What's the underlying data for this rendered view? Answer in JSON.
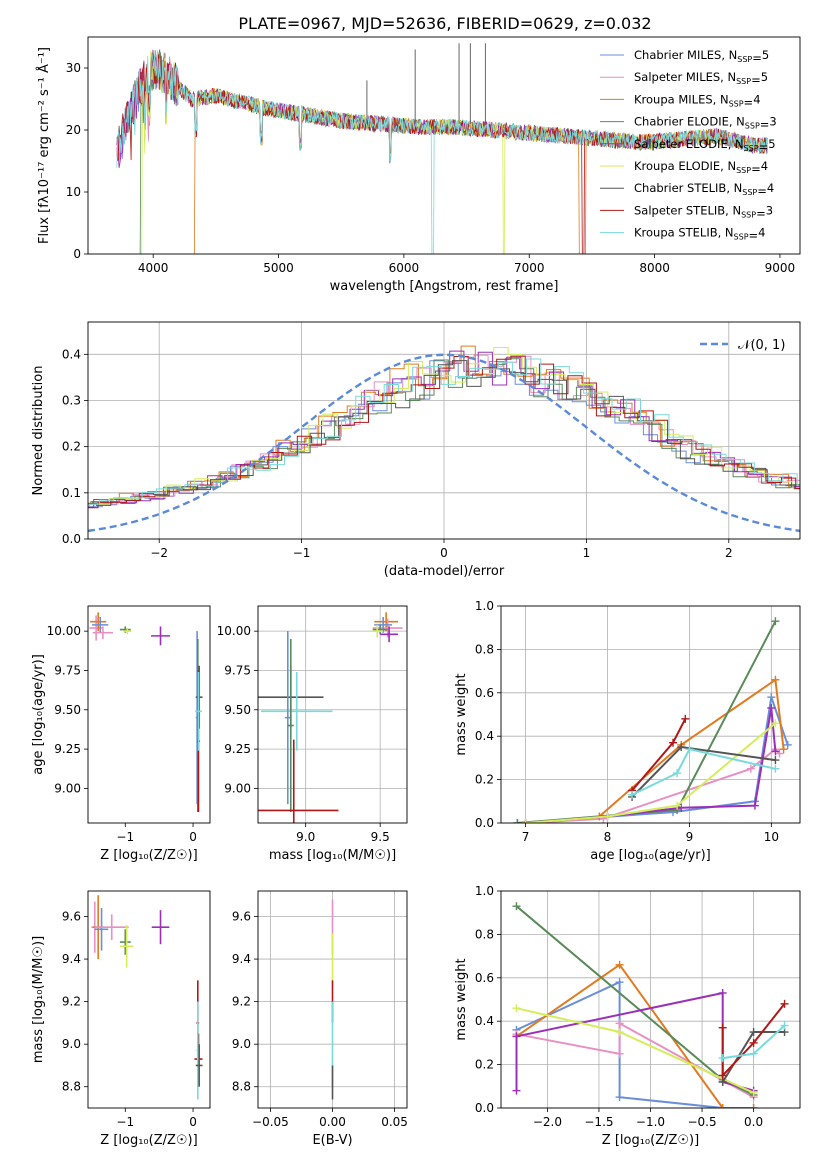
{
  "figure_title": "PLATE=0967, MJD=52636, FIBERID=0629, z=0.032",
  "colors": {
    "c0": "#6a8fd8",
    "c1": "#e88fc4",
    "c2": "#e07b20",
    "c3": "#5a8a5a",
    "c4": "#9b30b8",
    "c5": "#d4ee5a",
    "c6": "#555555",
    "c7": "#b01818",
    "c8": "#7adada",
    "ref": "#5a8ad8"
  },
  "chart_data": [
    {
      "id": "spectrum",
      "type": "line",
      "title": "PLATE=0967, MJD=52636, FIBERID=0629, z=0.032",
      "xlabel": "wavelength [Angstrom, rest frame]",
      "ylabel": "Flux [fλ10⁻¹⁷ erg cm⁻² s⁻¹ Å⁻¹]",
      "xlim": [
        3480,
        9160
      ],
      "ylim": [
        0,
        35
      ],
      "xticks": [
        4000,
        5000,
        6000,
        7000,
        8000,
        9000
      ],
      "yticks": [
        0,
        10,
        20,
        30
      ],
      "grid": false,
      "legend_position": "top-right",
      "continuum": {
        "x": [
          3710,
          3800,
          3900,
          4000,
          4100,
          4300,
          4500,
          4700,
          4900,
          5200,
          5500,
          5800,
          6100,
          6400,
          6700,
          7000,
          7300,
          7600,
          7900,
          8200,
          8500,
          8800
        ],
        "y": [
          16,
          22,
          27,
          30,
          29,
          25,
          25.5,
          24.5,
          23.5,
          22.5,
          21.5,
          21,
          20.5,
          20.5,
          20,
          19.5,
          19,
          18.5,
          18,
          18.5,
          19,
          17.5
        ]
      },
      "series": [
        {
          "name": "Chabrier MILES",
          "nssp": "5",
          "color_key": "c0"
        },
        {
          "name": "Salpeter MILES",
          "nssp": "5",
          "color_key": "c1"
        },
        {
          "name": "Kroupa MILES",
          "nssp": "4",
          "color_key": "c2",
          "cutoff": [
            [
              3710,
              4330
            ],
            [
              7400,
              7450
            ]
          ]
        },
        {
          "name": "Chabrier ELODIE",
          "nssp": "3",
          "color_key": "c3",
          "cutoff": [
            [
              3710,
              3900
            ]
          ]
        },
        {
          "name": "Salpeter ELODIE",
          "nssp": "5",
          "color_key": "c4"
        },
        {
          "name": "Kroupa ELODIE",
          "nssp": "4",
          "color_key": "c5",
          "cutoff": [
            [
              3710,
              3910
            ],
            [
              6790,
              6800
            ]
          ]
        },
        {
          "name": "Chabrier STELIB",
          "nssp": "4",
          "color_key": "c6"
        },
        {
          "name": "Salpeter STELIB",
          "nssp": "3",
          "color_key": "c7",
          "cutoff": [
            [
              7420,
              7440
            ]
          ]
        },
        {
          "name": "Kroupa STELIB",
          "nssp": "4",
          "color_key": "c8",
          "cutoff": [
            [
              6220,
              6240
            ]
          ]
        }
      ]
    },
    {
      "id": "residuals",
      "type": "line",
      "xlabel": "(data-model)/error",
      "ylabel": "Normed distribution",
      "xlim": [
        -2.5,
        2.5
      ],
      "ylim": [
        0,
        0.47
      ],
      "xticks": [
        -2,
        -1,
        0,
        1,
        2
      ],
      "yticks": [
        0.0,
        0.1,
        0.2,
        0.3,
        0.4
      ],
      "grid": true,
      "legend_position": "top-right",
      "reference_label": "𝒩(0, 1)",
      "bin_width": 0.1,
      "hist_base": [
        0.075,
        0.078,
        0.082,
        0.087,
        0.092,
        0.098,
        0.104,
        0.111,
        0.118,
        0.126,
        0.135,
        0.146,
        0.158,
        0.172,
        0.188,
        0.205,
        0.222,
        0.24,
        0.258,
        0.276,
        0.294,
        0.311,
        0.326,
        0.339,
        0.35,
        0.36,
        0.367,
        0.372,
        0.374,
        0.372,
        0.368,
        0.36,
        0.35,
        0.338,
        0.322,
        0.308,
        0.297,
        0.287,
        0.275,
        0.258,
        0.238,
        0.216,
        0.2,
        0.186,
        0.175,
        0.165,
        0.155,
        0.145,
        0.136,
        0.127,
        0.118,
        0.108,
        0.098,
        0.088,
        0.08,
        0.074,
        0.068,
        0.062,
        0.056,
        0.052,
        0.048,
        0.045,
        0.042,
        0.04,
        0.038,
        0.036,
        0.034,
        0.032,
        0.03,
        0.029,
        0.028
      ]
    },
    {
      "id": "age_vs_Z",
      "type": "scatter",
      "xlabel": "Z [log₁₀(Z/Z☉)]",
      "ylabel": "age  [log₁₀(age/yr)]",
      "xlim": [
        -1.55,
        0.25
      ],
      "ylim": [
        8.78,
        10.16
      ],
      "xticks": [
        -1,
        0
      ],
      "yticks": [
        9.0,
        9.25,
        9.5,
        9.75,
        10.0
      ],
      "grid": false,
      "points": [
        {
          "x": -1.43,
          "y": 10.02,
          "xerr": 0.1,
          "yerr": 0.08,
          "color_key": "c1"
        },
        {
          "x": -1.4,
          "y": 10.06,
          "xerr": 0.12,
          "yerr": 0.06,
          "color_key": "c2"
        },
        {
          "x": -1.37,
          "y": 10.04,
          "xerr": 0.12,
          "yerr": 0.05,
          "color_key": "c0"
        },
        {
          "x": -1.33,
          "y": 9.99,
          "xerr": 0.15,
          "yerr": 0.04,
          "color_key": "c1"
        },
        {
          "x": -1.0,
          "y": 10.01,
          "xerr": 0.08,
          "yerr": 0.02,
          "color_key": "c3"
        },
        {
          "x": -0.97,
          "y": 10.0,
          "xerr": 0.06,
          "yerr": 0.02,
          "color_key": "c5"
        },
        {
          "x": -0.48,
          "y": 9.97,
          "xerr": 0.14,
          "yerr": 0.06,
          "color_key": "c4"
        },
        {
          "x": 0.06,
          "y": 9.45,
          "xerr": 0.02,
          "yerr": 0.55,
          "color_key": "c0"
        },
        {
          "x": 0.07,
          "y": 9.4,
          "xerr": 0.02,
          "yerr": 0.55,
          "color_key": "c3"
        },
        {
          "x": 0.08,
          "y": 9.3,
          "xerr": 0.02,
          "yerr": 0.45,
          "color_key": "c7"
        },
        {
          "x": 0.09,
          "y": 9.58,
          "xerr": 0.05,
          "yerr": 0.2,
          "color_key": "c6"
        },
        {
          "x": 0.08,
          "y": 9.49,
          "xerr": 0.05,
          "yerr": 0.25,
          "color_key": "c8"
        }
      ]
    },
    {
      "id": "age_vs_mass",
      "type": "scatter",
      "xlabel": "mass [log₁₀(M/M☉)]",
      "ylabel": "",
      "xlim": [
        8.68,
        9.68
      ],
      "ylim": [
        8.78,
        10.16
      ],
      "xticks": [
        9.0,
        9.5
      ],
      "yticks": [
        9.0,
        9.25,
        9.5,
        9.75,
        10.0
      ],
      "grid": true,
      "points": [
        {
          "x": 9.54,
          "y": 10.06,
          "xerr": 0.08,
          "yerr": 0.06,
          "color_key": "c2"
        },
        {
          "x": 9.55,
          "y": 10.02,
          "xerr": 0.1,
          "yerr": 0.06,
          "color_key": "c1"
        },
        {
          "x": 9.52,
          "y": 10.04,
          "xerr": 0.06,
          "yerr": 0.05,
          "color_key": "c0"
        },
        {
          "x": 9.5,
          "y": 10.01,
          "xerr": 0.05,
          "yerr": 0.03,
          "color_key": "c3"
        },
        {
          "x": 9.48,
          "y": 10.0,
          "xerr": 0.04,
          "yerr": 0.04,
          "color_key": "c5"
        },
        {
          "x": 9.56,
          "y": 9.98,
          "xerr": 0.06,
          "yerr": 0.05,
          "color_key": "c4"
        },
        {
          "x": 8.9,
          "y": 9.58,
          "xerr": 0.22,
          "yerr": 0.2,
          "color_key": "c6"
        },
        {
          "x": 8.94,
          "y": 9.49,
          "xerr": 0.24,
          "yerr": 0.25,
          "color_key": "c8"
        },
        {
          "x": 8.88,
          "y": 9.45,
          "xerr": 0.02,
          "yerr": 0.55,
          "color_key": "c0"
        },
        {
          "x": 8.9,
          "y": 9.4,
          "xerr": 0.02,
          "yerr": 0.55,
          "color_key": "c3"
        },
        {
          "x": 8.92,
          "y": 8.86,
          "xerr": 0.3,
          "yerr": 0.45,
          "color_key": "c7"
        }
      ]
    },
    {
      "id": "weight_vs_age",
      "type": "line",
      "xlabel": "age  [log₁₀(age/yr)]",
      "ylabel": "mass weight",
      "xlim": [
        6.7,
        10.35
      ],
      "ylim": [
        0,
        1.0
      ],
      "xticks": [
        7,
        8,
        9,
        10
      ],
      "yticks": [
        0.0,
        0.2,
        0.4,
        0.6,
        0.8,
        1.0
      ],
      "grid": true,
      "series": [
        {
          "color_key": "c0",
          "x": [
            6.9,
            8.8,
            9.8,
            10.0,
            10.2
          ],
          "y": [
            0.0,
            0.05,
            0.1,
            0.58,
            0.36
          ]
        },
        {
          "color_key": "c1",
          "x": [
            7.0,
            7.95,
            9.75,
            10.05,
            10.1
          ],
          "y": [
            0.0,
            0.02,
            0.25,
            0.34,
            0.32
          ]
        },
        {
          "color_key": "c2",
          "x": [
            7.0,
            7.9,
            8.9,
            10.05,
            10.15
          ],
          "y": [
            0.0,
            0.03,
            0.36,
            0.66,
            0.34
          ]
        },
        {
          "color_key": "c3",
          "x": [
            6.9,
            8.85,
            10.05
          ],
          "y": [
            0.0,
            0.06,
            0.93
          ]
        },
        {
          "color_key": "c4",
          "x": [
            7.0,
            8.0,
            8.9,
            9.8,
            10.0,
            10.05
          ],
          "y": [
            0.0,
            0.03,
            0.07,
            0.08,
            0.53,
            0.33
          ]
        },
        {
          "color_key": "c5",
          "x": [
            7.0,
            8.0,
            8.85,
            10.05
          ],
          "y": [
            0.0,
            0.03,
            0.08,
            0.46
          ]
        },
        {
          "color_key": "c6",
          "x": [
            8.3,
            8.9,
            10.05
          ],
          "y": [
            0.12,
            0.35,
            0.29
          ]
        },
        {
          "color_key": "c7",
          "x": [
            8.3,
            8.8,
            8.95
          ],
          "y": [
            0.15,
            0.37,
            0.48
          ]
        },
        {
          "color_key": "c8",
          "x": [
            8.3,
            8.85,
            9.0,
            10.05
          ],
          "y": [
            0.13,
            0.23,
            0.34,
            0.25
          ]
        }
      ]
    },
    {
      "id": "mass_vs_Z",
      "type": "scatter",
      "xlabel": "Z [log₁₀(Z/Z☉)]",
      "ylabel": "mass [log₁₀(M/M☉)]",
      "xlim": [
        -1.55,
        0.25
      ],
      "ylim": [
        8.7,
        9.72
      ],
      "xticks": [
        -1,
        0
      ],
      "yticks": [
        8.8,
        9.0,
        9.2,
        9.4,
        9.6
      ],
      "grid": false,
      "points": [
        {
          "x": -1.45,
          "y": 9.55,
          "xerr": 0.05,
          "yerr": 0.12,
          "color_key": "c1"
        },
        {
          "x": -1.4,
          "y": 9.55,
          "xerr": 0.08,
          "yerr": 0.15,
          "color_key": "c2"
        },
        {
          "x": -1.35,
          "y": 9.54,
          "xerr": 0.1,
          "yerr": 0.1,
          "color_key": "c0"
        },
        {
          "x": -1.2,
          "y": 9.55,
          "xerr": 0.25,
          "yerr": 0.06,
          "color_key": "c1"
        },
        {
          "x": -1.0,
          "y": 9.48,
          "xerr": 0.08,
          "yerr": 0.06,
          "color_key": "c3"
        },
        {
          "x": -0.98,
          "y": 9.46,
          "xerr": 0.1,
          "yerr": 0.1,
          "color_key": "c5"
        },
        {
          "x": -0.48,
          "y": 9.55,
          "xerr": 0.13,
          "yerr": 0.08,
          "color_key": "c4"
        },
        {
          "x": 0.07,
          "y": 9.1,
          "xerr": 0.02,
          "yerr": 0.2,
          "color_key": "c7"
        },
        {
          "x": 0.08,
          "y": 8.93,
          "xerr": 0.06,
          "yerr": 0.12,
          "color_key": "c7"
        },
        {
          "x": 0.07,
          "y": 8.97,
          "xerr": 0.02,
          "yerr": 0.23,
          "color_key": "c8"
        },
        {
          "x": 0.09,
          "y": 8.9,
          "xerr": 0.05,
          "yerr": 0.1,
          "color_key": "c6"
        }
      ]
    },
    {
      "id": "mass_vs_ebv",
      "type": "scatter",
      "xlabel": "E(B-V)",
      "ylabel": "",
      "xlim": [
        -0.06,
        0.06
      ],
      "ylim": [
        8.7,
        9.72
      ],
      "xticks": [
        -0.05,
        0.0,
        0.05
      ],
      "yticks": [
        8.8,
        9.0,
        9.2,
        9.4,
        9.6
      ],
      "grid": true,
      "points": [
        {
          "x": 0.0,
          "y": 9.55,
          "xerr": 0,
          "yerr": 0.13,
          "color_key": "c1"
        },
        {
          "x": 0.0,
          "y": 9.4,
          "xerr": 0,
          "yerr": 0.12,
          "color_key": "c5"
        },
        {
          "x": 0.0,
          "y": 9.2,
          "xerr": 0,
          "yerr": 0.1,
          "color_key": "c7"
        },
        {
          "x": 0.0,
          "y": 9.0,
          "xerr": 0,
          "yerr": 0.2,
          "color_key": "c8"
        },
        {
          "x": 0.0,
          "y": 8.82,
          "xerr": 0,
          "yerr": 0.08,
          "color_key": "c6"
        }
      ]
    },
    {
      "id": "weight_vs_Z",
      "type": "line",
      "xlabel": "Z [log₁₀(Z/Z☉)]",
      "ylabel": "mass weight",
      "xlim": [
        -2.45,
        0.45
      ],
      "ylim": [
        0,
        1.0
      ],
      "xticks": [
        -2.0,
        -1.5,
        -1.0,
        -0.5,
        0.0
      ],
      "yticks": [
        0.0,
        0.2,
        0.4,
        0.6,
        0.8,
        1.0
      ],
      "grid": true,
      "series": [
        {
          "color_key": "c0",
          "x": [
            -2.3,
            -1.3,
            -1.3,
            -0.3,
            0.0
          ],
          "y": [
            0.36,
            0.58,
            0.05,
            0.0,
            0.0
          ]
        },
        {
          "color_key": "c1",
          "x": [
            -2.3,
            -1.3,
            -1.3,
            0.0
          ],
          "y": [
            0.34,
            0.25,
            0.39,
            0.05
          ]
        },
        {
          "color_key": "c2",
          "x": [
            -2.3,
            -1.3,
            -0.3,
            0.0
          ],
          "y": [
            0.33,
            0.66,
            0.0,
            0.0
          ]
        },
        {
          "color_key": "c3",
          "x": [
            -2.3,
            -0.3,
            0.0
          ],
          "y": [
            0.93,
            0.13,
            0.06
          ]
        },
        {
          "color_key": "c4",
          "x": [
            -2.3,
            -2.3,
            -0.3,
            -0.3,
            0.0
          ],
          "y": [
            0.08,
            0.33,
            0.53,
            0.12,
            0.08
          ]
        },
        {
          "color_key": "c5",
          "x": [
            -2.3,
            -1.3,
            0.0
          ],
          "y": [
            0.46,
            0.35,
            0.07
          ]
        },
        {
          "color_key": "c6",
          "x": [
            -0.3,
            0.0,
            0.3
          ],
          "y": [
            0.12,
            0.35,
            0.35
          ]
        },
        {
          "color_key": "c7",
          "x": [
            -0.3,
            -0.3,
            0.0,
            0.3
          ],
          "y": [
            0.37,
            0.15,
            0.3,
            0.48
          ]
        },
        {
          "color_key": "c8",
          "x": [
            -0.3,
            0.0,
            0.3
          ],
          "y": [
            0.23,
            0.25,
            0.38
          ]
        }
      ]
    }
  ]
}
